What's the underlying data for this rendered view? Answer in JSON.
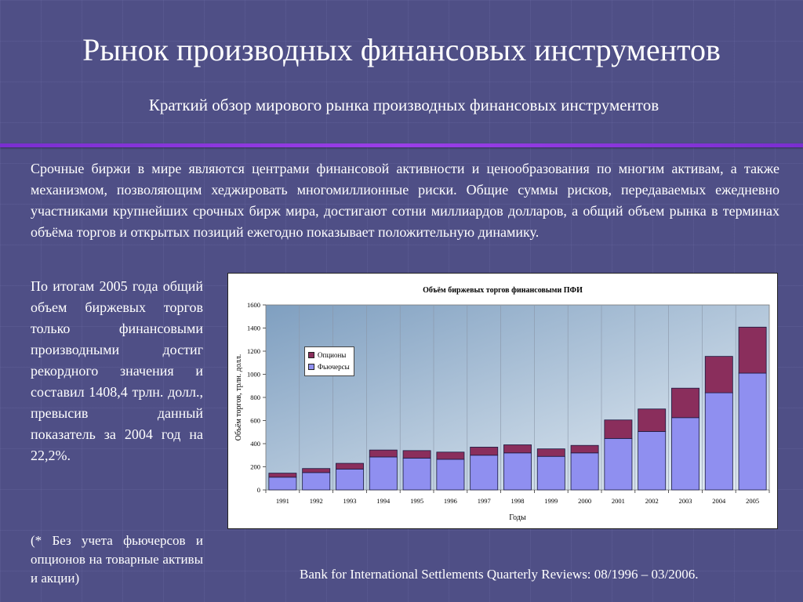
{
  "slide": {
    "title": "Рынок производных финансовых инструментов",
    "subtitle": "Краткий обзор мирового рынка производных финансовых инструментов",
    "intro": "Срочные биржи в мире являются центрами финансовой активности и ценообразования по многим активам, а также механизмом, позволяющим хеджировать многомиллионные риски. Общие суммы рисков, передаваемых ежедневно участниками крупнейших срочных бирж мира, достигают сотни миллиардов долларов, а общий объем рынка в терминах объёма торгов и открытых позиций ежегодно показывает положительную динамику.",
    "side_text": "По итогам 2005 года общий объем биржевых торгов только финансовыми производными достиг рекордного значения и составил 1408,4 трлн. долл., превысив данный показатель за 2004 год на 22,2%.",
    "footnote": "(* Без учета фьючерсов и опционов на товарные активы и акции)",
    "source": "Bank for International Settlements Quarterly Reviews: 08/1996 – 03/2006.",
    "colors": {
      "background": "#4f4f86",
      "divider": "#8a36e0",
      "futures": "#8f8ff0",
      "options": "#8a2e5c",
      "plot_top": "#7f9fc0",
      "plot_bottom": "#e6eef5"
    }
  },
  "chart_data": {
    "type": "bar",
    "stacked": true,
    "title": "Объём биржевых торгов финансовыми ПФИ",
    "xlabel": "Годы",
    "ylabel": "Объём торгов, трлн. долл.",
    "categories": [
      "1991",
      "1992",
      "1993",
      "1994",
      "1995",
      "1996",
      "1997",
      "1998",
      "1999",
      "2000",
      "2001",
      "2002",
      "2003",
      "2004",
      "2005"
    ],
    "series": [
      {
        "name": "Фьючерсы",
        "color": "#8f8ff0",
        "values": [
          110,
          150,
          180,
          285,
          275,
          265,
          300,
          320,
          290,
          320,
          445,
          505,
          625,
          840,
          1010
        ]
      },
      {
        "name": "Опционы",
        "color": "#8a2e5c",
        "values": [
          35,
          35,
          50,
          60,
          65,
          62,
          70,
          70,
          65,
          65,
          160,
          195,
          255,
          315,
          398
        ]
      }
    ],
    "ylim": [
      0,
      1600
    ],
    "yticks": [
      "0",
      "200",
      "400",
      "600",
      "800",
      "1000",
      "1200",
      "1400",
      "1600"
    ],
    "legend_order": [
      "Опционы",
      "Фьючерсы"
    ],
    "legend_position": "top-left",
    "grid": "vertical"
  }
}
